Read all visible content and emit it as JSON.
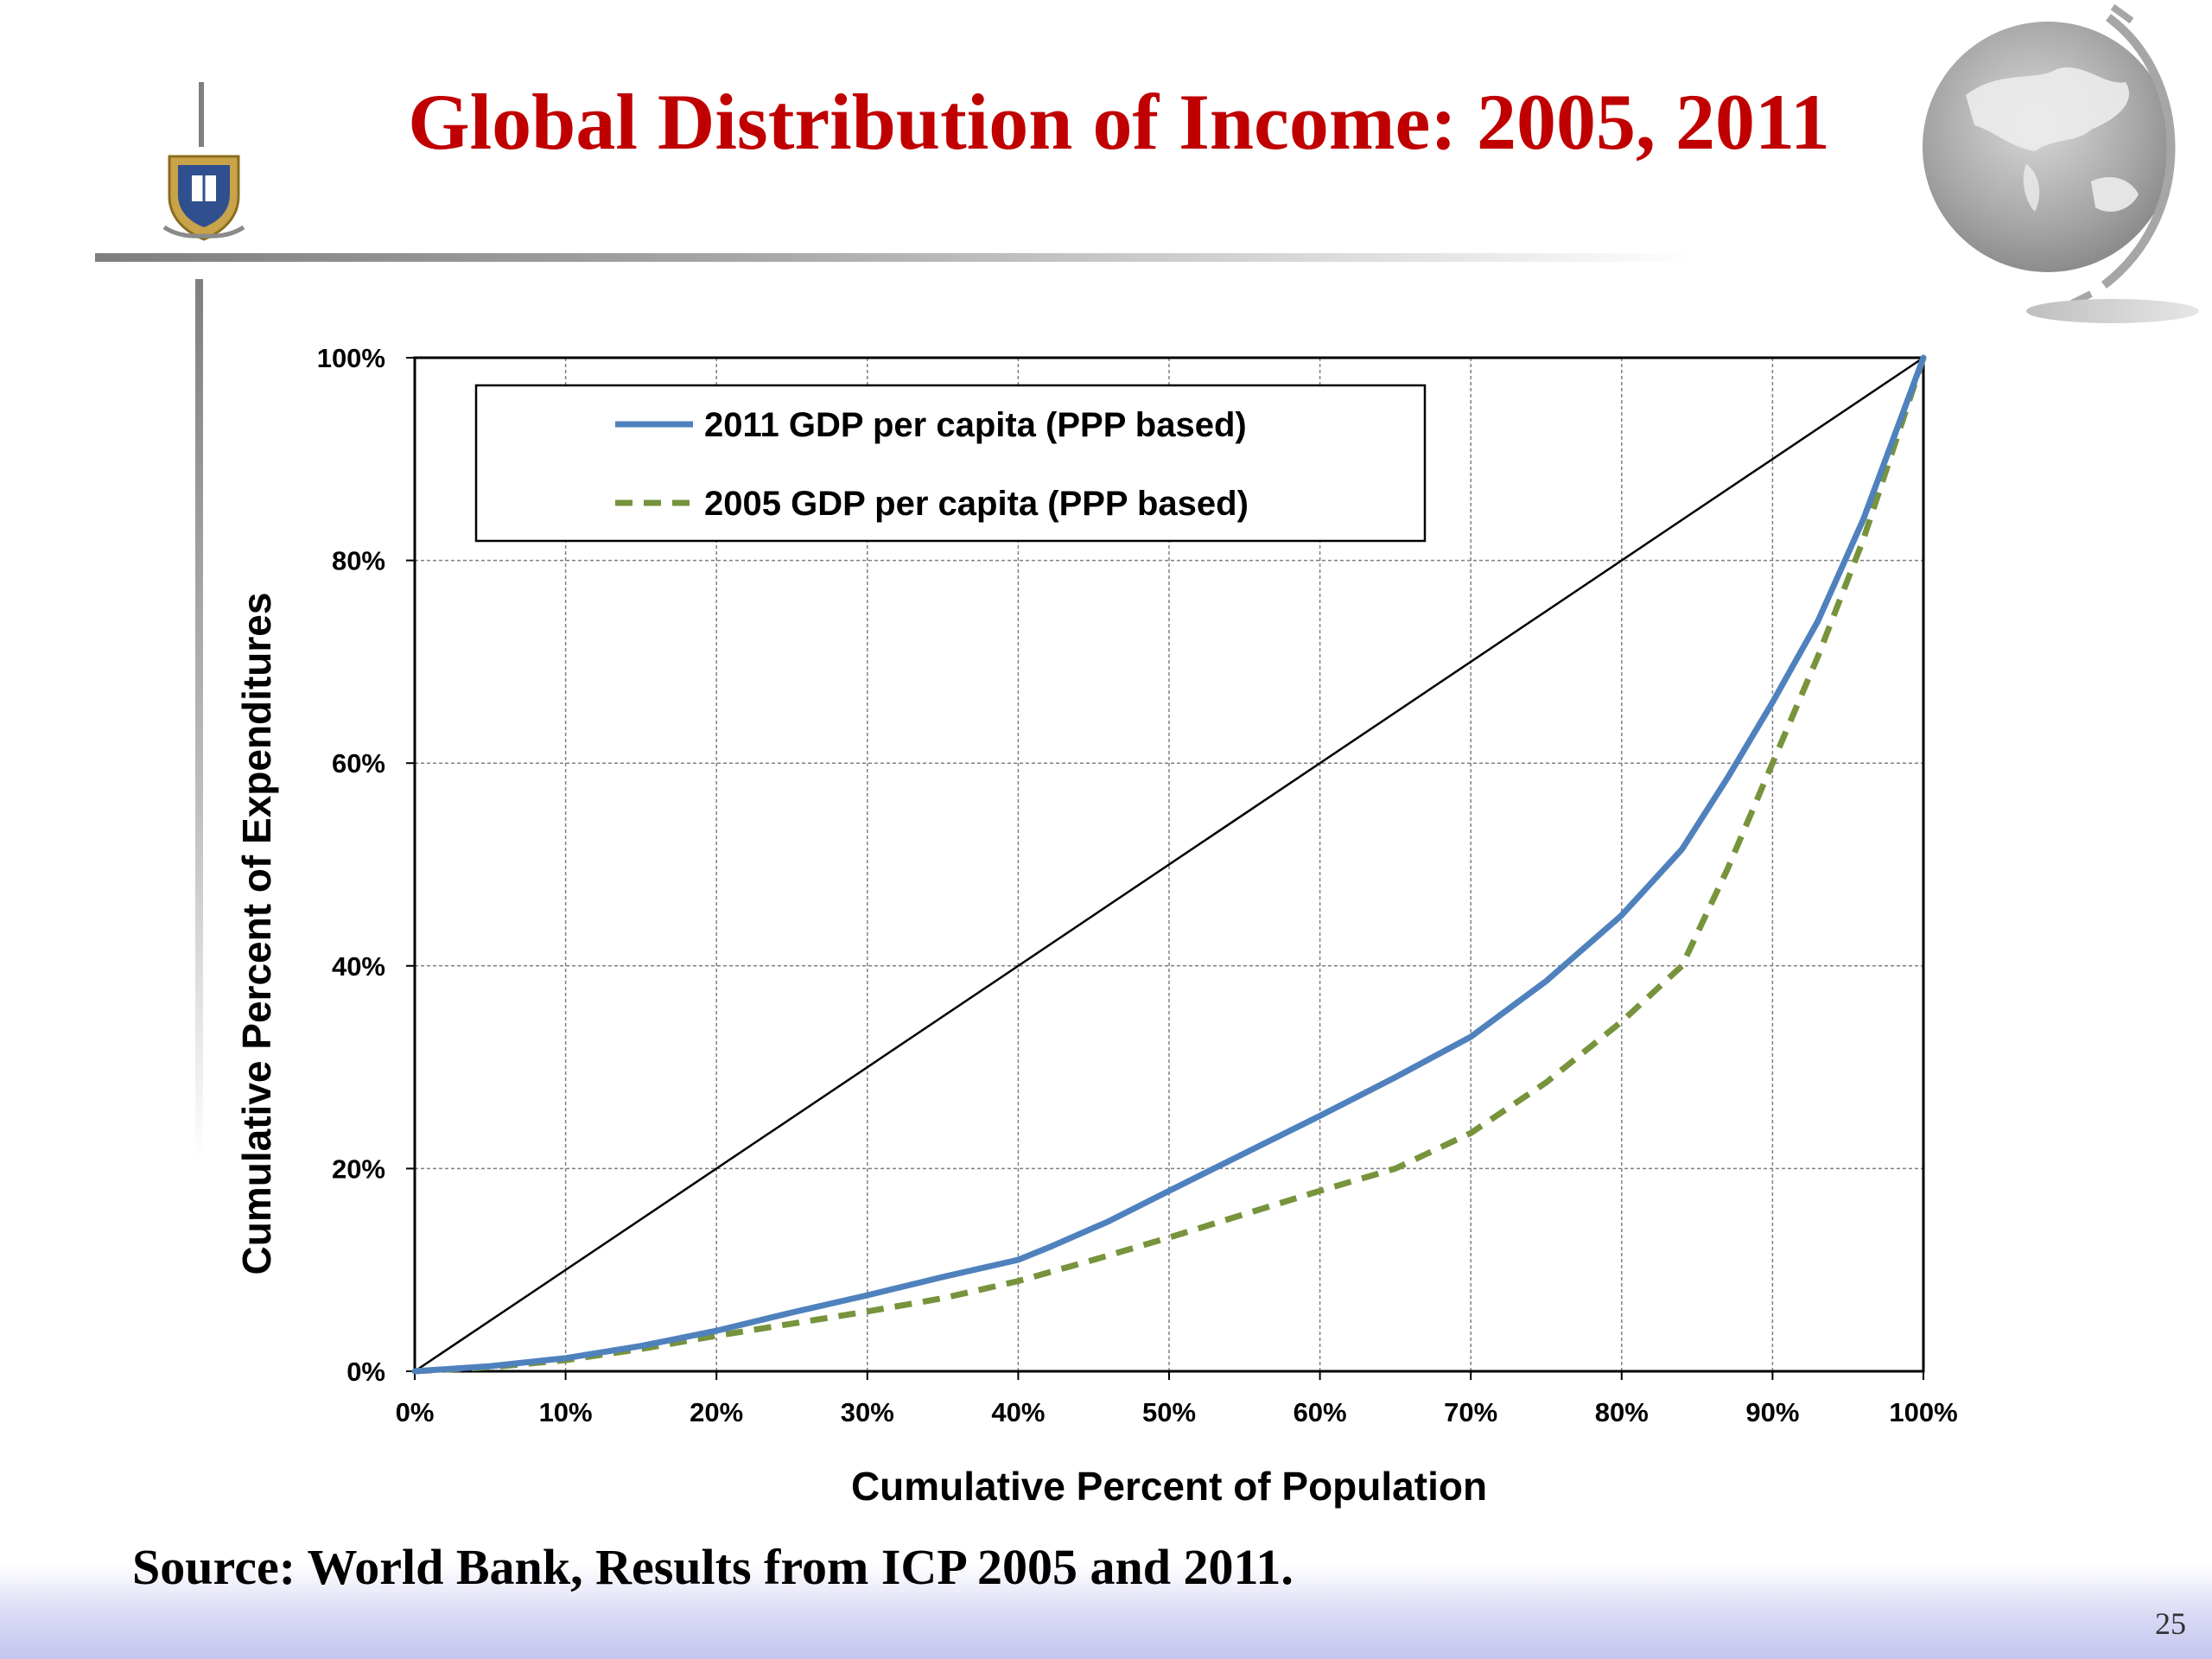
{
  "slide": {
    "title": "Global Distribution of Income: 2005, 2011",
    "source": "Source: World Bank, Results from ICP 2005 and 2011.",
    "page_number": "25",
    "logo_icon": "university-crest-icon",
    "decoration_icon": "globe-icon"
  },
  "chart_data": {
    "type": "line",
    "title": "",
    "xlabel": "Cumulative Percent of Population",
    "ylabel": "Cumulative Percent of Expenditures",
    "xlim": [
      0,
      100
    ],
    "ylim": [
      0,
      100
    ],
    "xticks": [
      "0%",
      "10%",
      "20%",
      "30%",
      "40%",
      "50%",
      "60%",
      "70%",
      "80%",
      "90%",
      "100%"
    ],
    "yticks": [
      "0%",
      "20%",
      "40%",
      "60%",
      "80%",
      "100%"
    ],
    "grid": true,
    "legend_position": "top-left",
    "equality_line": {
      "x": [
        0,
        100
      ],
      "y": [
        0,
        100
      ],
      "color": "#000000"
    },
    "series": [
      {
        "name": "2011 GDP per capita (PPP based)",
        "color": "#4f81bd",
        "style": "solid",
        "x": [
          0,
          5,
          10,
          15,
          20,
          25,
          30,
          35,
          40,
          42,
          46,
          50,
          55,
          60,
          65,
          70,
          75,
          80,
          84,
          87,
          90,
          93,
          96,
          100
        ],
        "y": [
          0,
          0.5,
          1.3,
          2.5,
          4.0,
          5.8,
          7.5,
          9.3,
          11.0,
          12.2,
          14.8,
          17.8,
          21.5,
          25.2,
          29.0,
          33.0,
          38.5,
          45.0,
          51.5,
          58.5,
          66.0,
          74.0,
          84.0,
          100
        ]
      },
      {
        "name": "2005 GDP per capita (PPP based)",
        "color": "#77933c",
        "style": "dashed",
        "x": [
          0,
          5,
          10,
          15,
          20,
          25,
          30,
          35,
          40,
          45,
          50,
          55,
          60,
          65,
          70,
          75,
          80,
          84,
          87,
          90,
          93,
          96,
          100
        ],
        "y": [
          0,
          0.4,
          1.1,
          2.2,
          3.5,
          4.7,
          5.9,
          7.2,
          8.9,
          11.0,
          13.2,
          15.5,
          17.8,
          20.0,
          23.5,
          28.5,
          34.5,
          40.0,
          49.5,
          60.0,
          70.5,
          82.0,
          100
        ]
      }
    ]
  }
}
